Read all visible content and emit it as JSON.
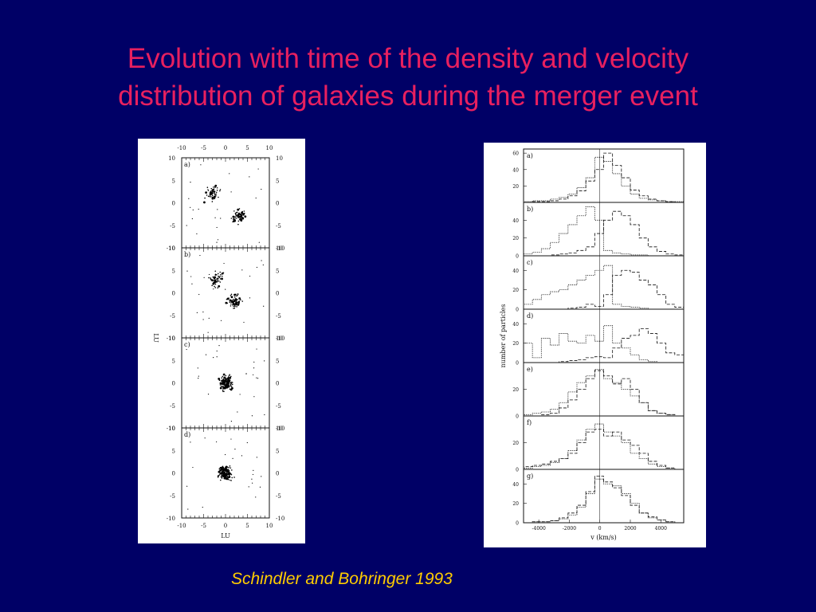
{
  "slide": {
    "title_line1": "Evolution with time of the density and velocity",
    "title_line2": "distribution of galaxies during the merger event",
    "caption": "Schindler and Bohringer 1993"
  },
  "colors": {
    "background": "#000066",
    "title": "#e8205f",
    "caption": "#ffcc00"
  },
  "left_figure": {
    "xlabel": "LU",
    "ylabel": "LU",
    "top_ticks": [
      "-10",
      "-5",
      "0",
      "5",
      "10"
    ],
    "bottom_ticks": [
      "-10",
      "-5",
      "0",
      "5",
      "10"
    ],
    "panel_yticks": [
      "10",
      "5",
      "0",
      "-5",
      "-10"
    ],
    "panels": [
      {
        "label": "a)",
        "clusters": [
          {
            "x": -3,
            "y": 2,
            "n": 55
          },
          {
            "x": 3,
            "y": -3,
            "n": 70
          }
        ]
      },
      {
        "label": "b)",
        "clusters": [
          {
            "x": -2,
            "y": 3,
            "n": 50
          },
          {
            "x": 2,
            "y": -2,
            "n": 65
          }
        ]
      },
      {
        "label": "c)",
        "clusters": [
          {
            "x": 0,
            "y": 0,
            "n": 140
          }
        ]
      },
      {
        "label": "d)",
        "clusters": [
          {
            "x": 0,
            "y": 0,
            "n": 150
          }
        ]
      }
    ]
  },
  "right_figure": {
    "xlabel": "v (km/s)",
    "ylabel": "number of particles",
    "xticks": [
      "-4000",
      "-2000",
      "0",
      "2000",
      "4000"
    ],
    "panels": [
      {
        "label": "a)",
        "yticks": [
          "60",
          "40",
          "20"
        ],
        "ymax": 65,
        "dotted": [
          1,
          2,
          2,
          4,
          6,
          10,
          18,
          30,
          55,
          50,
          35,
          20,
          10,
          5,
          3,
          2,
          1,
          1
        ],
        "dashed": [
          0,
          1,
          1,
          2,
          4,
          8,
          14,
          26,
          40,
          60,
          45,
          30,
          15,
          8,
          4,
          2,
          1,
          0
        ]
      },
      {
        "label": "b)",
        "yticks": [
          "40",
          "20",
          "0"
        ],
        "ymax": 60,
        "dotted": [
          2,
          4,
          8,
          15,
          25,
          35,
          45,
          55,
          40,
          6,
          3,
          2,
          1,
          1,
          0,
          0,
          0,
          0
        ],
        "dashed": [
          0,
          0,
          0,
          1,
          2,
          3,
          6,
          10,
          25,
          40,
          50,
          45,
          35,
          20,
          10,
          5,
          2,
          1
        ]
      },
      {
        "label": "c)",
        "yticks": [
          "40",
          "20",
          "0"
        ],
        "ymax": 55,
        "dotted": [
          5,
          10,
          15,
          18,
          20,
          25,
          30,
          35,
          40,
          45,
          5,
          3,
          2,
          1,
          0,
          0,
          0,
          0
        ],
        "dashed": [
          0,
          0,
          0,
          0,
          0,
          1,
          2,
          5,
          3,
          15,
          35,
          40,
          38,
          30,
          25,
          15,
          5,
          2
        ]
      },
      {
        "label": "d)",
        "yticks": [
          "40",
          "20",
          "0"
        ],
        "ymax": 55,
        "dotted": [
          20,
          5,
          25,
          18,
          30,
          22,
          20,
          28,
          22,
          38,
          20,
          15,
          8,
          3,
          1,
          0,
          0,
          0
        ],
        "dashed": [
          0,
          0,
          0,
          0,
          1,
          2,
          3,
          5,
          6,
          5,
          15,
          25,
          28,
          35,
          30,
          20,
          10,
          8
        ]
      },
      {
        "label": "e)",
        "yticks": [
          "20",
          "0"
        ],
        "ymax": 40,
        "dotted": [
          1,
          2,
          3,
          5,
          10,
          18,
          25,
          30,
          35,
          28,
          25,
          20,
          15,
          10,
          4,
          2,
          1,
          0
        ],
        "dashed": [
          0,
          0,
          1,
          2,
          6,
          12,
          20,
          28,
          34,
          30,
          24,
          28,
          20,
          10,
          4,
          2,
          1,
          0
        ]
      },
      {
        "label": "f)",
        "yticks": [
          "20",
          "0"
        ],
        "ymax": 40,
        "dotted": [
          1,
          2,
          3,
          5,
          8,
          14,
          22,
          30,
          34,
          28,
          25,
          20,
          12,
          8,
          4,
          2,
          1,
          0
        ],
        "dashed": [
          2,
          3,
          4,
          6,
          8,
          12,
          20,
          28,
          30,
          25,
          28,
          22,
          18,
          12,
          6,
          3,
          1,
          0
        ]
      },
      {
        "label": "g)",
        "yticks": [
          "40",
          "20",
          "0"
        ],
        "ymax": 55,
        "dotted": [
          0,
          1,
          1,
          2,
          4,
          8,
          16,
          30,
          45,
          40,
          38,
          30,
          20,
          10,
          5,
          3,
          1,
          0
        ],
        "dashed": [
          0,
          1,
          1,
          2,
          5,
          10,
          18,
          32,
          48,
          42,
          36,
          28,
          18,
          10,
          6,
          3,
          1,
          0
        ]
      }
    ]
  }
}
